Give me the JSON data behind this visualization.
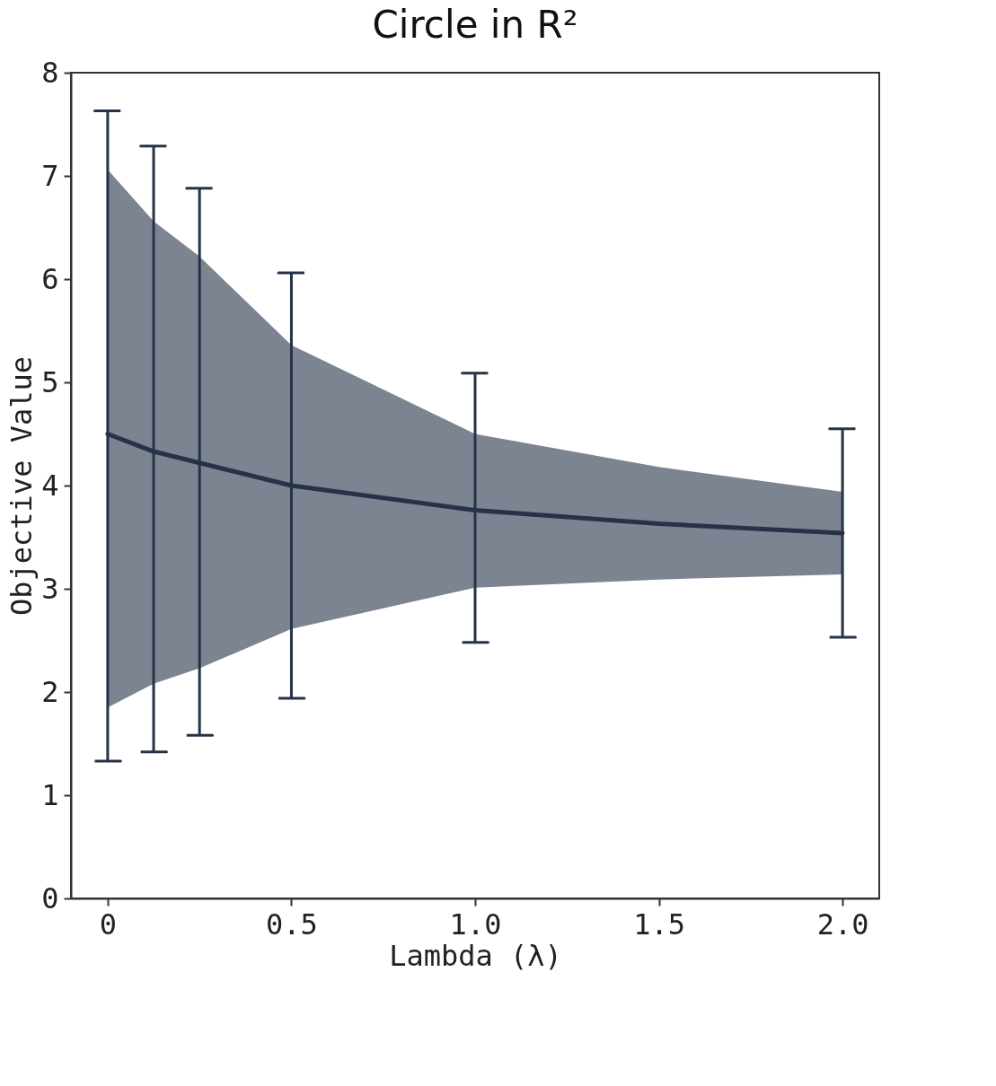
{
  "chart_data": {
    "type": "line",
    "title": "Circle in R²",
    "xlabel": "Lambda (λ)",
    "ylabel": "Objective Value",
    "x": [
      0,
      0.125,
      0.25,
      0.5,
      1.0,
      1.5,
      2.0
    ],
    "series": [
      {
        "color": "#263248",
        "values": [
          4.5,
          4.33,
          4.22,
          4.0,
          3.76,
          3.63,
          3.54
        ],
        "lower": [
          1.85,
          2.08,
          2.23,
          2.61,
          3.01,
          3.09,
          3.14
        ],
        "upper": [
          7.06,
          6.56,
          6.22,
          5.36,
          4.5,
          4.18,
          3.94
        ],
        "errors": [
          [
            1.33,
            7.63
          ],
          [
            1.42,
            7.29
          ],
          [
            1.58,
            6.88
          ],
          [
            1.94,
            6.06
          ],
          [
            2.48,
            5.09
          ],
          null,
          [
            2.53,
            4.55
          ]
        ]
      }
    ],
    "xlim": [
      -0.1,
      2.1
    ],
    "xticks": [
      {
        "value": 0,
        "label": "0"
      },
      0.5,
      {
        "value": 1,
        "label": "1.0"
      },
      1.5,
      {
        "value": 2,
        "label": "2.0"
      }
    ],
    "ylim": [
      0,
      8
    ],
    "yticks": [
      0,
      1,
      2,
      3,
      4,
      5,
      6,
      7,
      8
    ],
    "legend": false,
    "marker": "none",
    "line_style": "solid"
  }
}
